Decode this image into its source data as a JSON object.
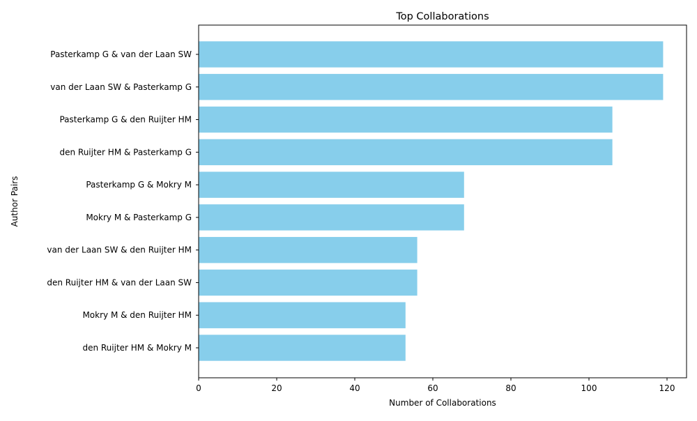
{
  "chart_data": {
    "type": "bar",
    "orientation": "horizontal",
    "title": "Top Collaborations",
    "xlabel": "Number of Collaborations",
    "ylabel": "Author Pairs",
    "xlim": [
      0,
      125
    ],
    "xticks": [
      0,
      20,
      40,
      60,
      80,
      100,
      120
    ],
    "categories": [
      "Pasterkamp G & van der Laan SW",
      "van der Laan SW & Pasterkamp G",
      "Pasterkamp G & den Ruijter HM",
      "den Ruijter HM & Pasterkamp G",
      "Pasterkamp G & Mokry M",
      "Mokry M & Pasterkamp G",
      "van der Laan SW & den Ruijter HM",
      "den Ruijter HM & van der Laan SW",
      "Mokry M & den Ruijter HM",
      "den Ruijter HM & Mokry M"
    ],
    "values": [
      119,
      119,
      106,
      106,
      68,
      68,
      56,
      56,
      53,
      53
    ],
    "bar_color": "#87ceeb",
    "grid": false,
    "legend": "none"
  }
}
